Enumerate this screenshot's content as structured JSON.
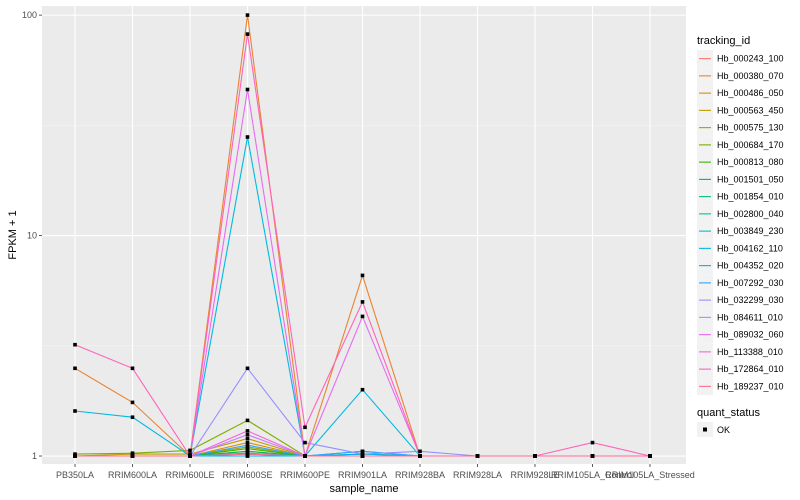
{
  "chart_data": {
    "type": "line",
    "xlabel": "sample_name",
    "ylabel": "FPKM + 1",
    "y_scale": "log10",
    "ylim": [
      0.92,
      110
    ],
    "y_ticks": [
      1,
      10,
      100
    ],
    "y_tick_labels": [
      "1",
      "10",
      "100"
    ],
    "categories": [
      "PB350LA",
      "RRIM600LA",
      "RRIM600LE",
      "RRIM600SE",
      "RRIM600PE",
      "RRIM901LA",
      "RRIM928BA",
      "RRIM928LA",
      "RRIM928LE",
      "RRIM105LA_Control",
      "RRIM105LA_Stressed"
    ],
    "legend_title": "tracking_id",
    "shape_legend_title": "quant_status",
    "shape_legend_label": "OK",
    "series": [
      {
        "name": "Hb_000243_100",
        "color": "#F8766D",
        "values": [
          1.0,
          1.0,
          1.0,
          1.05,
          1.0,
          1.0,
          1.0,
          1.0,
          1.0,
          1.0,
          1.0
        ]
      },
      {
        "name": "Hb_000380_070",
        "color": "#EA8331",
        "values": [
          2.5,
          1.75,
          1.0,
          100.0,
          1.0,
          6.6,
          1.0,
          1.0,
          1.0,
          1.0,
          1.0
        ]
      },
      {
        "name": "Hb_000486_050",
        "color": "#D89000",
        "values": [
          1.0,
          1.0,
          1.0,
          1.15,
          1.0,
          1.0,
          1.0,
          1.0,
          1.0,
          1.0,
          1.0
        ]
      },
      {
        "name": "Hb_000563_450",
        "color": "#C09B00",
        "values": [
          1.0,
          1.02,
          1.02,
          1.2,
          1.0,
          1.0,
          1.0,
          1.0,
          1.0,
          1.0,
          1.0
        ]
      },
      {
        "name": "Hb_000575_130",
        "color": "#A3A500",
        "values": [
          1.0,
          1.0,
          1.0,
          1.1,
          1.0,
          1.0,
          1.0,
          1.0,
          1.0,
          1.0,
          1.0
        ]
      },
      {
        "name": "Hb_000684_170",
        "color": "#7CAE00",
        "values": [
          1.02,
          1.03,
          1.06,
          1.45,
          1.0,
          1.02,
          1.0,
          1.0,
          1.0,
          1.0,
          1.0
        ]
      },
      {
        "name": "Hb_000813_080",
        "color": "#39B600",
        "values": [
          1.0,
          1.0,
          1.0,
          1.08,
          1.0,
          1.0,
          1.0,
          1.0,
          1.0,
          1.0,
          1.0
        ]
      },
      {
        "name": "Hb_001501_050",
        "color": "#00BB4E",
        "values": [
          1.0,
          1.0,
          1.0,
          1.05,
          1.0,
          1.0,
          1.0,
          1.0,
          1.0,
          1.0,
          1.0
        ]
      },
      {
        "name": "Hb_001854_010",
        "color": "#00BF7D",
        "values": [
          1.0,
          1.0,
          1.0,
          1.02,
          1.0,
          1.0,
          1.0,
          1.0,
          1.0,
          1.0,
          1.0
        ]
      },
      {
        "name": "Hb_002800_040",
        "color": "#00C1A3",
        "values": [
          1.0,
          1.0,
          1.0,
          1.0,
          1.0,
          1.0,
          1.0,
          1.0,
          1.0,
          1.0,
          1.0
        ]
      },
      {
        "name": "Hb_003849_230",
        "color": "#00BFC4",
        "values": [
          1.0,
          1.0,
          1.0,
          1.03,
          1.0,
          1.05,
          1.0,
          1.0,
          1.0,
          1.0,
          1.0
        ]
      },
      {
        "name": "Hb_004162_110",
        "color": "#00BAE0",
        "values": [
          1.6,
          1.5,
          1.0,
          28.0,
          1.0,
          2.0,
          1.0,
          1.0,
          1.0,
          1.0,
          1.0
        ]
      },
      {
        "name": "Hb_004352_020",
        "color": "#00B0F6",
        "values": [
          1.0,
          1.0,
          1.0,
          1.0,
          1.0,
          1.02,
          1.0,
          1.0,
          1.0,
          1.0,
          1.0
        ]
      },
      {
        "name": "Hb_007292_030",
        "color": "#35A2FF",
        "values": [
          1.0,
          1.0,
          1.0,
          1.12,
          1.0,
          1.05,
          1.0,
          1.0,
          1.0,
          1.0,
          1.0
        ]
      },
      {
        "name": "Hb_032299_030",
        "color": "#9590FF",
        "values": [
          1.0,
          1.0,
          1.0,
          2.5,
          1.15,
          1.02,
          1.05,
          1.0,
          1.0,
          1.0,
          1.0
        ]
      },
      {
        "name": "Hb_084611_010",
        "color": "#C77CFF",
        "values": [
          1.0,
          1.0,
          1.0,
          1.25,
          1.0,
          1.0,
          1.0,
          1.0,
          1.0,
          1.0,
          1.0
        ]
      },
      {
        "name": "Hb_089032_060",
        "color": "#E76BF3",
        "values": [
          1.0,
          1.0,
          1.0,
          46.0,
          1.0,
          4.3,
          1.0,
          1.0,
          1.0,
          1.0,
          1.0
        ]
      },
      {
        "name": "Hb_113388_010",
        "color": "#FA62DB",
        "values": [
          1.0,
          1.0,
          1.0,
          1.3,
          1.0,
          1.0,
          1.0,
          1.0,
          1.0,
          1.0,
          1.0
        ]
      },
      {
        "name": "Hb_172864_010",
        "color": "#FF62BC",
        "values": [
          3.2,
          2.5,
          1.0,
          82.0,
          1.35,
          5.0,
          1.0,
          1.0,
          1.0,
          1.15,
          1.0
        ]
      },
      {
        "name": "Hb_189237_010",
        "color": "#FF6C91",
        "values": [
          1.0,
          1.0,
          1.0,
          1.02,
          1.0,
          1.0,
          1.0,
          1.0,
          1.0,
          1.0,
          1.0
        ]
      }
    ]
  }
}
